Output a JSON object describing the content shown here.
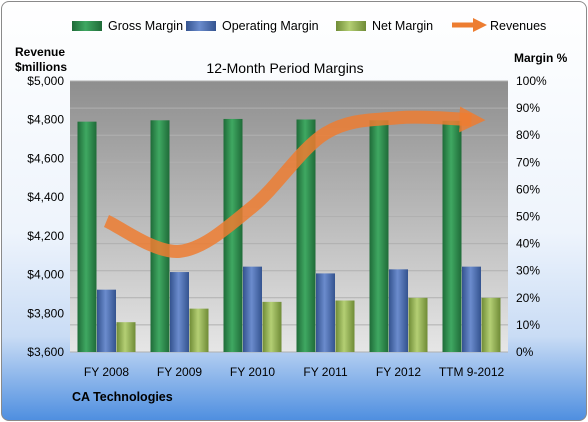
{
  "chart_data": {
    "type": "bar",
    "title": "12-Month Period Margins",
    "left_axis_label": [
      "Revenue",
      "$millions"
    ],
    "right_axis_label": "Margin %",
    "categories": [
      "FY 2008",
      "FY 2009",
      "FY 2010",
      "FY 2011",
      "FY 2012",
      "TTM 9-2012"
    ],
    "left_axis": {
      "min": 3600,
      "max": 5000,
      "step": 200,
      "ticks": [
        "$3,600",
        "$3,800",
        "$4,000",
        "$4,200",
        "$4,400",
        "$4,600",
        "$4,800",
        "$5,000"
      ]
    },
    "right_axis": {
      "min": 0,
      "max": 100,
      "step": 10,
      "ticks": [
        "0%",
        "10%",
        "20%",
        "30%",
        "40%",
        "50%",
        "60%",
        "70%",
        "80%",
        "90%",
        "100%"
      ]
    },
    "series": [
      {
        "name": "Gross Margin",
        "type": "bar",
        "axis": "right",
        "color": "#2e8b4e",
        "values": [
          85,
          85.5,
          86,
          85.8,
          85.5,
          85.3
        ]
      },
      {
        "name": "Operating Margin",
        "type": "bar",
        "axis": "right",
        "color": "#4f71b8",
        "values": [
          23,
          29.5,
          31.5,
          29,
          30.5,
          31.5
        ]
      },
      {
        "name": "Net Margin",
        "type": "bar",
        "axis": "right",
        "color": "#98b954",
        "values": [
          11,
          16,
          18.5,
          19,
          20,
          20
        ]
      },
      {
        "name": "Revenues",
        "type": "line",
        "axis": "left",
        "color": "#ed7d31",
        "values": [
          4277,
          4120,
          4350,
          4730,
          4810,
          4800
        ]
      }
    ],
    "grid": true,
    "legend": "top"
  },
  "footer": {
    "company": "CA Technologies"
  }
}
